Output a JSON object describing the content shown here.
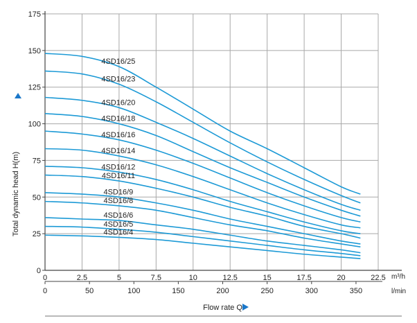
{
  "chart_data": {
    "type": "line",
    "colors": {
      "curve": "#1d9ad6",
      "grid": "#a8a8a8",
      "axis": "#444444",
      "arrow": "#1a77c9"
    },
    "grid": true,
    "ylabel": "Total dynamic head H(m)",
    "xlabel": "Flow rate Q",
    "x_top": {
      "unit": "m³/h",
      "ticks": [
        "0",
        "2.5",
        "5",
        "7.5",
        "10",
        "12.5",
        "15",
        "17.5",
        "20",
        "22.5"
      ],
      "xlim": [
        0,
        22.5
      ]
    },
    "x_bottom": {
      "unit": "l/min",
      "ticks": [
        "0",
        "50",
        "100",
        "150",
        "200",
        "250",
        "300",
        "350"
      ],
      "xlim": [
        0,
        375
      ]
    },
    "y": {
      "ticks": [
        "0",
        "25",
        "50",
        "75",
        "100",
        "125",
        "150",
        "175"
      ],
      "ylim": [
        0,
        175
      ]
    },
    "series": [
      {
        "name": "4SD16/25",
        "x": [
          0,
          2.5,
          5,
          7.5,
          10,
          12.5,
          15,
          17.5,
          20,
          21.3
        ],
        "values": [
          148,
          146,
          139,
          125,
          110,
          95,
          83,
          70,
          57,
          52
        ]
      },
      {
        "name": "4SD16/23",
        "x": [
          0,
          2.5,
          5,
          7.5,
          10,
          12.5,
          15,
          17.5,
          20,
          21.3
        ],
        "values": [
          136,
          134,
          127,
          115,
          101,
          87,
          74,
          62,
          51,
          46
        ]
      },
      {
        "name": "4SD16/20",
        "x": [
          0,
          2.5,
          5,
          7.5,
          10,
          12.5,
          15,
          17.5,
          20,
          21.3
        ],
        "values": [
          118,
          116,
          111,
          101,
          90,
          78,
          66,
          55,
          45,
          41
        ]
      },
      {
        "name": "4SD16/18",
        "x": [
          0,
          2.5,
          5,
          7.5,
          10,
          12.5,
          15,
          17.5,
          20,
          21.3
        ],
        "values": [
          107,
          105,
          100,
          92,
          81,
          70,
          60,
          50,
          41,
          37
        ]
      },
      {
        "name": "4SD16/16",
        "x": [
          0,
          2.5,
          5,
          7.5,
          10,
          12.5,
          15,
          17.5,
          20,
          21.3
        ],
        "values": [
          95,
          93,
          89,
          82,
          73,
          63,
          53,
          44,
          36,
          33
        ]
      },
      {
        "name": "4SD16/14",
        "x": [
          0,
          2.5,
          5,
          7.5,
          10,
          12.5,
          15,
          17.5,
          20,
          21.3
        ],
        "values": [
          83,
          82,
          78,
          72,
          64,
          55,
          46,
          38,
          31,
          29
        ]
      },
      {
        "name": "4SD16/12",
        "x": [
          0,
          2.5,
          5,
          7.5,
          10,
          12.5,
          15,
          17.5,
          20,
          21.3
        ],
        "values": [
          71,
          70,
          67,
          62,
          55,
          47,
          40,
          33,
          27,
          25
        ]
      },
      {
        "name": "4SD16/11",
        "x": [
          0,
          2.5,
          5,
          7.5,
          10,
          12.5,
          15,
          17.5,
          20,
          21.3
        ],
        "values": [
          65,
          64,
          61,
          56,
          50,
          43,
          37,
          30,
          25,
          22
        ]
      },
      {
        "name": "4SD16/9",
        "x": [
          0,
          2.5,
          5,
          7.5,
          10,
          12.5,
          15,
          17.5,
          20,
          21.3
        ],
        "values": [
          53,
          52,
          50,
          46,
          41,
          35,
          30,
          25,
          20,
          18
        ]
      },
      {
        "name": "4SD16/8",
        "x": [
          0,
          2.5,
          5,
          7.5,
          10,
          12.5,
          15,
          17.5,
          20,
          21.3
        ],
        "values": [
          47,
          46,
          44,
          41,
          36,
          31,
          27,
          22,
          18,
          16
        ]
      },
      {
        "name": "4SD16/6",
        "x": [
          0,
          2.5,
          5,
          7.5,
          10,
          12.5,
          15,
          17.5,
          20,
          21.3
        ],
        "values": [
          36,
          35,
          34,
          31,
          28,
          24,
          20,
          17,
          14,
          12
        ]
      },
      {
        "name": "4SD16/5",
        "x": [
          0,
          2.5,
          5,
          7.5,
          10,
          12.5,
          15,
          17.5,
          20,
          21.3
        ],
        "values": [
          30,
          29.5,
          28,
          26,
          23,
          20,
          17,
          14,
          11.5,
          10
        ]
      },
      {
        "name": "4SD16/4",
        "x": [
          0,
          2.5,
          5,
          7.5,
          10,
          12.5,
          15,
          17.5,
          20,
          21.3
        ],
        "values": [
          24,
          23.5,
          22.5,
          21,
          18.5,
          16,
          13.5,
          11,
          9,
          8
        ]
      }
    ]
  }
}
